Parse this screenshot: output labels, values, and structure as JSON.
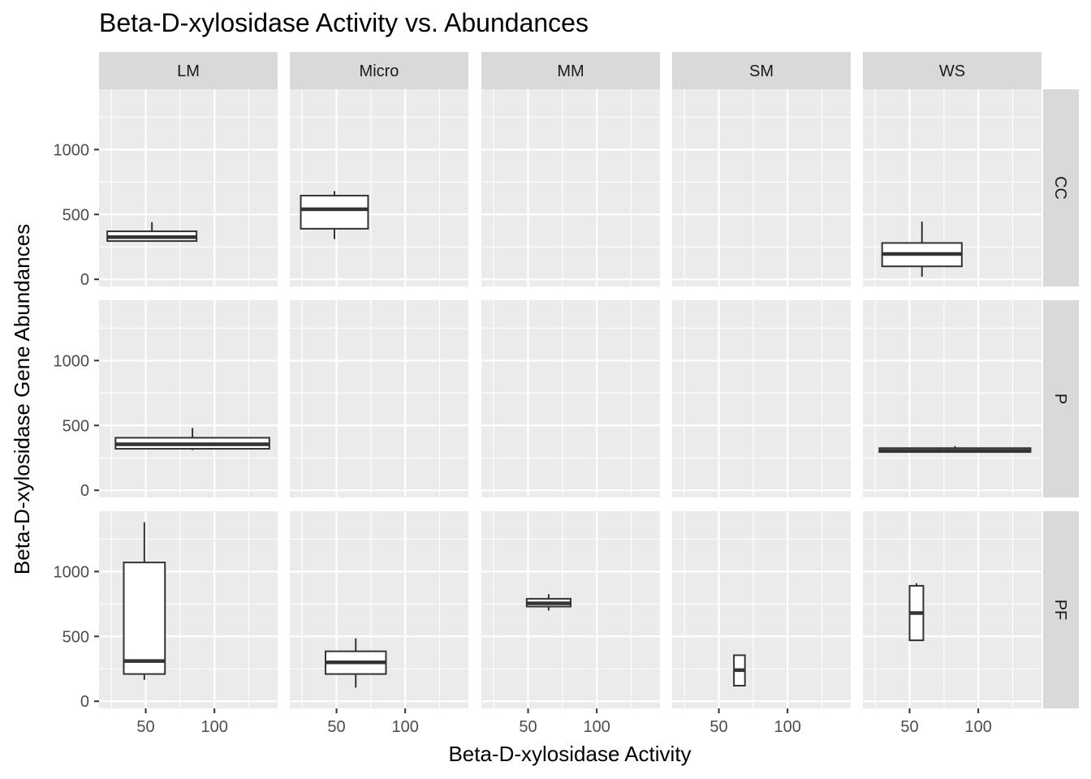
{
  "chart_data": {
    "type": "boxplot",
    "title": "Beta-D-xylosidase Activity vs. Abundances",
    "xlabel": "Beta-D-xylosidase Activity",
    "ylabel": "Beta-D-xylosidase Gene Abundances",
    "columns": [
      "LM",
      "Micro",
      "MM",
      "SM",
      "WS"
    ],
    "rows": [
      "CC",
      "P",
      "PF"
    ],
    "xlim": [
      16,
      146
    ],
    "ylim": [
      -55,
      1465
    ],
    "x_ticks": [
      50,
      100
    ],
    "y_ticks": [
      0,
      500,
      1000
    ],
    "grid": true,
    "boxes": [
      {
        "row": "CC",
        "col": "LM",
        "xmin": 22,
        "xmax": 87,
        "lower": 290,
        "q1": 295,
        "median": 325,
        "q3": 370,
        "upper": 440
      },
      {
        "row": "CC",
        "col": "Micro",
        "xmin": 24,
        "xmax": 73,
        "lower": 310,
        "q1": 390,
        "median": 540,
        "q3": 645,
        "upper": 680
      },
      {
        "row": "CC",
        "col": "WS",
        "xmin": 30,
        "xmax": 88,
        "lower": 20,
        "q1": 100,
        "median": 195,
        "q3": 280,
        "upper": 445
      },
      {
        "row": "P",
        "col": "LM",
        "xmin": 28,
        "xmax": 140,
        "lower": 310,
        "q1": 320,
        "median": 355,
        "q3": 405,
        "upper": 480
      },
      {
        "row": "P",
        "col": "WS",
        "xmin": 28,
        "xmax": 138,
        "lower": 295,
        "q1": 295,
        "median": 305,
        "q3": 325,
        "upper": 340
      },
      {
        "row": "PF",
        "col": "LM",
        "xmin": 34,
        "xmax": 64,
        "lower": 165,
        "q1": 210,
        "median": 310,
        "q3": 1070,
        "upper": 1380
      },
      {
        "row": "PF",
        "col": "Micro",
        "xmin": 42,
        "xmax": 86,
        "lower": 105,
        "q1": 210,
        "median": 300,
        "q3": 385,
        "upper": 485
      },
      {
        "row": "PF",
        "col": "MM",
        "xmin": 49,
        "xmax": 81,
        "lower": 700,
        "q1": 730,
        "median": 755,
        "q3": 790,
        "upper": 825
      },
      {
        "row": "PF",
        "col": "SM",
        "xmin": 61,
        "xmax": 69,
        "lower": 120,
        "q1": 120,
        "median": 240,
        "q3": 355,
        "upper": 360
      },
      {
        "row": "PF",
        "col": "WS",
        "xmin": 50,
        "xmax": 60,
        "lower": 470,
        "q1": 470,
        "median": 680,
        "q3": 890,
        "upper": 910
      }
    ]
  }
}
